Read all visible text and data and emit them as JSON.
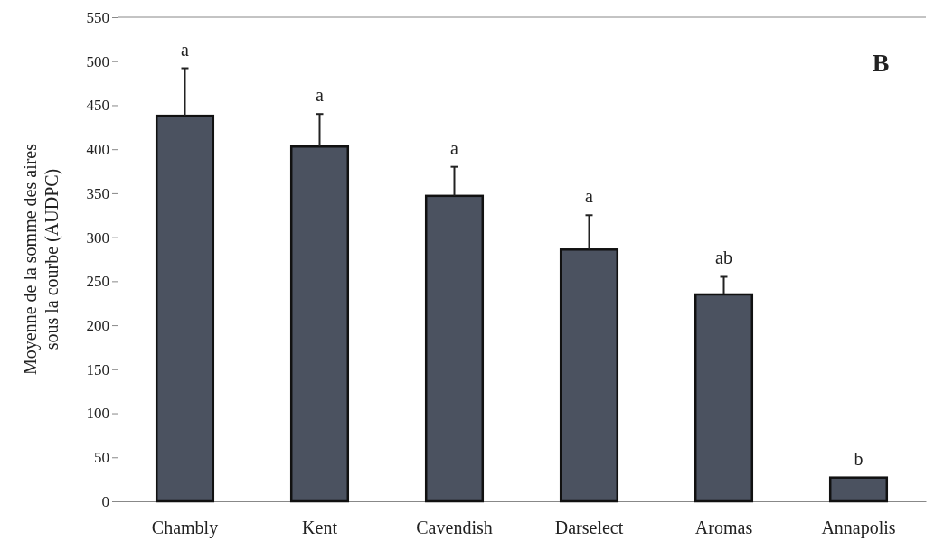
{
  "chart_data": {
    "type": "bar",
    "ylabel": "Moyenne de la somme des aires sous la courbe (AUDPC)",
    "categories": [
      "Chambly",
      "Kent",
      "Cavendish",
      "Darselect",
      "Aromas",
      "Annapolis"
    ],
    "values": [
      438,
      403,
      347,
      286,
      235,
      27
    ],
    "errors": [
      [
        438,
        492
      ],
      [
        403,
        440
      ],
      [
        347,
        380
      ],
      [
        286,
        325
      ],
      [
        235,
        255
      ],
      null
    ],
    "color": "#4b5260",
    "ylim": [
      0,
      550
    ],
    "yticks": [
      0,
      50,
      100,
      150,
      200,
      250,
      300,
      350,
      400,
      450,
      500,
      550
    ],
    "annotations": [
      "a",
      "a",
      "a",
      "a",
      "ab",
      "b",
      "B"
    ]
  }
}
